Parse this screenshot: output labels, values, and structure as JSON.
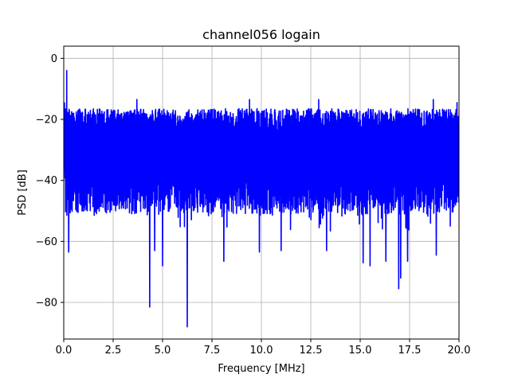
{
  "chart_data": {
    "type": "line",
    "title": "channel056 logain",
    "xlabel": "Frequency [MHz]",
    "ylabel": "PSD [dB]",
    "xlim": [
      0,
      20
    ],
    "ylim": [
      -92,
      4
    ],
    "xticks": [
      0,
      2.5,
      5,
      7.5,
      10,
      12.5,
      15,
      17.5,
      20
    ],
    "xtick_labels": [
      "0.0",
      "2.5",
      "5.0",
      "7.5",
      "10.0",
      "12.5",
      "15.0",
      "17.5",
      "20.0"
    ],
    "yticks": [
      0,
      -20,
      -40,
      -60,
      -80
    ],
    "ytick_labels": [
      "0",
      "−20",
      "−40",
      "−60",
      "−80"
    ],
    "grid": true,
    "series": [
      {
        "color": "#0000ff",
        "upper_envelope_db": -16.5,
        "lower_envelope_db": -51,
        "start_db": -10,
        "peaks": [
          {
            "x": 0.15,
            "y": -4
          },
          {
            "x": 3.7,
            "y": -13.5
          },
          {
            "x": 9.4,
            "y": -13.5
          },
          {
            "x": 12.9,
            "y": -13.5
          },
          {
            "x": 18.7,
            "y": -13.5
          },
          {
            "x": 19.9,
            "y": -14.5
          }
        ],
        "dips": [
          {
            "x": 0.25,
            "y": -63.5
          },
          {
            "x": 4.35,
            "y": -81.5
          },
          {
            "x": 4.6,
            "y": -63
          },
          {
            "x": 5.0,
            "y": -68
          },
          {
            "x": 6.25,
            "y": -88
          },
          {
            "x": 8.1,
            "y": -66.5
          },
          {
            "x": 9.9,
            "y": -63.5
          },
          {
            "x": 11.0,
            "y": -63
          },
          {
            "x": 13.3,
            "y": -63
          },
          {
            "x": 15.15,
            "y": -67
          },
          {
            "x": 15.5,
            "y": -68
          },
          {
            "x": 16.3,
            "y": -66.5
          },
          {
            "x": 16.95,
            "y": -75.5
          },
          {
            "x": 17.05,
            "y": -72
          },
          {
            "x": 17.4,
            "y": -66.5
          },
          {
            "x": 18.85,
            "y": -64.5
          }
        ]
      }
    ]
  }
}
